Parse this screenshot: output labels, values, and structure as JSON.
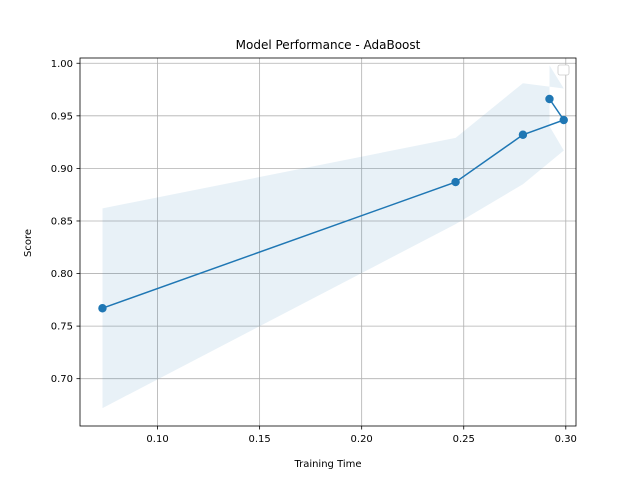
{
  "chart_data": {
    "type": "line",
    "title": "Model Performance - AdaBoost",
    "xlabel": "Training Time",
    "ylabel": "Score",
    "xlim": [
      0.062,
      0.305
    ],
    "ylim": [
      0.655,
      1.005
    ],
    "xticks": [
      0.1,
      0.15,
      0.2,
      0.25,
      0.3
    ],
    "xtick_labels": [
      "0.10",
      "0.15",
      "0.20",
      "0.25",
      "0.30"
    ],
    "yticks": [
      0.7,
      0.75,
      0.8,
      0.85,
      0.9,
      0.95,
      1.0
    ],
    "ytick_labels": [
      "0.70",
      "0.75",
      "0.80",
      "0.85",
      "0.90",
      "0.95",
      "1.00"
    ],
    "grid": true,
    "legend": "top-right (empty)",
    "series": [
      {
        "color": "#1f77b4",
        "marker": "circle",
        "x": [
          0.073,
          0.246,
          0.279,
          0.299,
          0.292
        ],
        "y": [
          0.767,
          0.887,
          0.932,
          0.946,
          0.966
        ]
      }
    ],
    "band": {
      "color": "#1f77b4",
      "opacity": 0.1,
      "x": [
        0.073,
        0.246,
        0.279,
        0.299,
        0.292
      ],
      "upper": [
        0.862,
        0.929,
        0.981,
        0.976,
        0.998
      ],
      "lower": [
        0.672,
        0.847,
        0.885,
        0.917,
        0.94
      ]
    }
  }
}
